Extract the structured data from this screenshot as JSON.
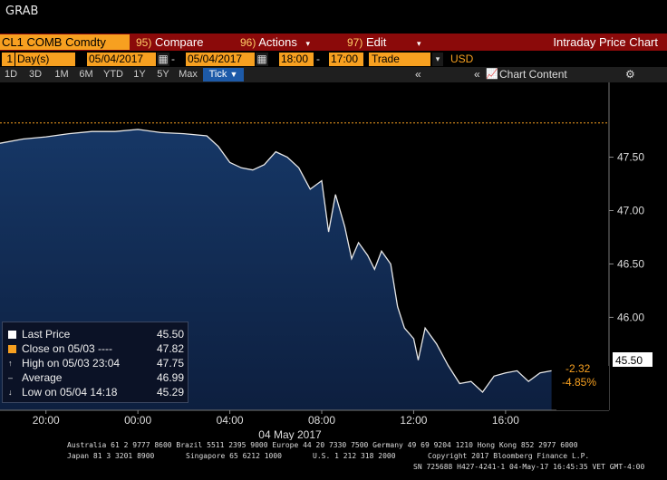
{
  "window": {
    "title": "GRAB"
  },
  "toolbar": {
    "ticker": "CL1 COMB Comdty",
    "compare_num": "95)",
    "compare_label": "Compare",
    "actions_num": "96)",
    "actions_label": "Actions",
    "edit_num": "97)",
    "edit_label": "Edit",
    "function_title": "Intraday Price Chart"
  },
  "range_bar": {
    "period_count": "1",
    "period_unit": "Day(s)",
    "start_date": "05/04/2017",
    "end_date": "05/04/2017",
    "start_time": "18:00",
    "end_time": "17:00",
    "event": "Trade",
    "currency": "USD"
  },
  "period_bar": {
    "periods": [
      "1D",
      "3D",
      "1M",
      "6M",
      "YTD",
      "1Y",
      "5Y",
      "Max"
    ],
    "selected": "Tick",
    "chart_content_label": "Chart Content"
  },
  "legend": {
    "last_price_label": "Last Price",
    "last_price_value": "45.50",
    "close_label": "Close on 05/03 ----",
    "close_value": "47.82",
    "high_label": "High on 05/03 23:04",
    "high_value": "47.75",
    "average_label": "Average",
    "average_value": "46.99",
    "low_label": "Low on 05/04 14:18",
    "low_value": "45.29"
  },
  "price_tags": {
    "last": "45.50",
    "change": "-2.32",
    "change_pct": "-4.85%"
  },
  "colors": {
    "toolbar_red": "#8b0a0a",
    "accent_orange": "#f7a020",
    "price_fill": "#102a4e",
    "price_line": "#e8e8e8"
  },
  "chart_data": {
    "type": "area",
    "title": "",
    "xlabel": "04 May 2017",
    "ylabel": "",
    "x_tick_labels": [
      "20:00",
      "00:00",
      "04:00",
      "08:00",
      "12:00",
      "16:00"
    ],
    "y_tick_labels": [
      "47.50",
      "47.00",
      "46.50",
      "46.00"
    ],
    "y_ticks": [
      47.5,
      47.0,
      46.5,
      46.0
    ],
    "ylim": [
      45.13,
      48.2
    ],
    "x_hours": [
      18,
      19,
      20,
      21,
      22,
      23,
      24,
      25,
      26,
      27,
      27.5,
      28,
      28.5,
      29,
      29.5,
      30,
      30.5,
      31,
      31.5,
      32,
      32.3,
      32.6,
      33,
      33.3,
      33.6,
      34,
      34.3,
      34.6,
      35,
      35.3,
      35.6,
      36,
      36.2,
      36.5,
      37,
      37.5,
      38,
      38.5,
      39,
      39.5,
      40,
      40.5,
      41,
      41.5,
      42
    ],
    "series": [
      {
        "values": [
          47.63,
          47.67,
          47.69,
          47.72,
          47.74,
          47.74,
          47.76,
          47.73,
          47.72,
          47.7,
          47.6,
          47.45,
          47.4,
          47.38,
          47.43,
          47.55,
          47.5,
          47.4,
          47.2,
          47.28,
          46.8,
          47.15,
          46.85,
          46.55,
          46.7,
          46.58,
          46.45,
          46.62,
          46.5,
          46.1,
          45.9,
          45.8,
          45.6,
          45.9,
          45.75,
          45.55,
          45.38,
          45.4,
          45.3,
          45.45,
          45.48,
          45.5,
          45.4,
          45.48,
          45.5
        ]
      }
    ],
    "reference_lines": [
      {
        "name": "Close on 05/03",
        "value": 47.82
      }
    ],
    "grid": false,
    "legend_position": "bottom-left"
  },
  "footer": {
    "line1": "Australia 61 2 9777 8600 Brazil 5511 2395 9000 Europe 44 20 7330 7500 Germany 49 69 9204 1210 Hong Kong 852 2977 6000",
    "line2a": "Japan 81 3 3201 8900",
    "line2b": "Singapore 65 6212 1000",
    "line2c": "U.S. 1 212 318 2000",
    "line2d": "Copyright 2017 Bloomberg Finance L.P.",
    "line3": "SN 725688 H427-4241-1 04-May-17 16:45:35 VET  GMT-4:00"
  }
}
